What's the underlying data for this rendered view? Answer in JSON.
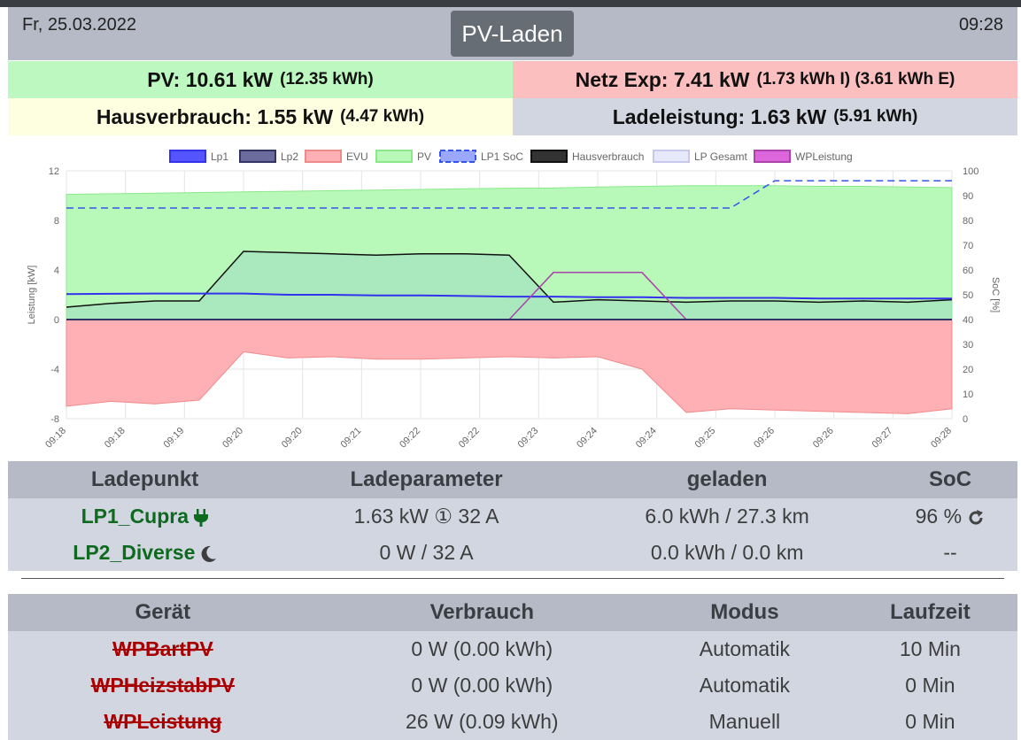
{
  "header": {
    "date": "Fr, 25.03.2022",
    "title": "PV-Laden",
    "time": "09:28"
  },
  "status": {
    "pv": {
      "label": "PV: 10.61 kW",
      "sub": "(12.35 kWh)",
      "color": "#bcf8c0"
    },
    "netz": {
      "label": "Netz Exp: 7.41 kW",
      "sub": "(1.73 kWh I) (3.61 kWh E)",
      "color": "#fbbfc0"
    },
    "haus": {
      "label": "Hausverbrauch: 1.55 kW",
      "sub": "(4.47 kWh)",
      "color": "#fefee0"
    },
    "lade": {
      "label": "Ladeleistung: 1.63 kW",
      "sub": "(5.91 kWh)",
      "color": "#d1d6e0"
    }
  },
  "chart_data": {
    "type": "area",
    "ylabel": "Leistung [kW]",
    "y2label": "SoC [%]",
    "ylim": [
      -8,
      12
    ],
    "yticks": [
      -8,
      -4,
      0,
      4,
      8,
      12
    ],
    "y2lim": [
      0,
      100
    ],
    "y2ticks": [
      0,
      10,
      20,
      30,
      40,
      50,
      60,
      70,
      80,
      90,
      100
    ],
    "xticks": [
      "09:18",
      "09:18",
      "09:19",
      "09:20",
      "09:20",
      "09:21",
      "09:22",
      "09:22",
      "09:23",
      "09:24",
      "09:24",
      "09:25",
      "09:26",
      "09:26",
      "09:27",
      "09:28"
    ],
    "legend": [
      {
        "name": "Lp1",
        "color": "#3333ee",
        "fill": "#5555ff"
      },
      {
        "name": "Lp2",
        "color": "#333366",
        "fill": "#6b6b9c"
      },
      {
        "name": "EVU",
        "color": "#f08a8a",
        "fill": "#ffb0b4"
      },
      {
        "name": "PV",
        "color": "#8be88b",
        "fill": "#b8f8b8"
      },
      {
        "name": "LP1 SoC",
        "color": "#3355ee",
        "fill": "#9aa8ff",
        "dashed": true
      },
      {
        "name": "Hausverbrauch",
        "color": "#111111",
        "fill": "#333333"
      },
      {
        "name": "LP Gesamt",
        "color": "#c8c8ee",
        "fill": "#e8e8fb"
      },
      {
        "name": "WPLeistung",
        "color": "#aa44aa",
        "fill": "#dd66dd"
      }
    ],
    "x": [
      0,
      0.5,
      1,
      1.5,
      2,
      2.5,
      3,
      3.5,
      4,
      4.5,
      5,
      5.5,
      6,
      6.5,
      7,
      7.5,
      8,
      8.5,
      9,
      9.5,
      10
    ],
    "series": [
      {
        "name": "PV",
        "values": [
          10.1,
          10.15,
          10.2,
          10.25,
          10.3,
          10.35,
          10.4,
          10.45,
          10.5,
          10.55,
          10.6,
          10.62,
          10.7,
          10.75,
          10.8,
          10.8,
          10.8,
          10.75,
          10.75,
          10.7,
          10.65
        ]
      },
      {
        "name": "EVU",
        "values": [
          -7.0,
          -6.6,
          -6.8,
          -6.5,
          -2.6,
          -3.1,
          -3.0,
          -3.2,
          -3.2,
          -3.1,
          -3.0,
          -3.1,
          -3.0,
          -4.0,
          -7.5,
          -7.2,
          -7.3,
          -7.4,
          -7.5,
          -7.6,
          -7.2
        ]
      },
      {
        "name": "Hausverbrauch",
        "values": [
          1.0,
          1.3,
          1.5,
          1.5,
          5.5,
          5.4,
          5.3,
          5.2,
          5.3,
          5.3,
          5.2,
          1.4,
          1.6,
          1.5,
          1.4,
          1.5,
          1.5,
          1.4,
          1.5,
          1.4,
          1.6
        ]
      },
      {
        "name": "Lp1",
        "values": [
          2.05,
          2.08,
          2.1,
          2.1,
          2.1,
          2.0,
          2.0,
          1.95,
          1.95,
          1.9,
          1.85,
          1.85,
          1.8,
          1.8,
          1.75,
          1.75,
          1.75,
          1.7,
          1.7,
          1.7,
          1.7
        ]
      },
      {
        "name": "WPLeistung",
        "values": [
          0,
          0,
          0,
          0,
          0,
          0,
          0,
          0,
          0,
          0,
          0,
          3.8,
          3.8,
          3.8,
          0,
          0,
          0,
          0,
          0,
          0,
          0
        ]
      },
      {
        "name": "LP1 SoC",
        "values": [
          85,
          85,
          85,
          85,
          85,
          85,
          85,
          85,
          85,
          85,
          85,
          85,
          85,
          85,
          85,
          85,
          96,
          96,
          96,
          96,
          96
        ]
      }
    ]
  },
  "lp_table": {
    "headers": [
      "Ladepunkt",
      "Ladeparameter",
      "geladen",
      "SoC"
    ],
    "rows": [
      {
        "name": "LP1_Cupra",
        "icon": "plug-icon",
        "param": "1.63 kW ① 32 A",
        "geladen": "6.0 kWh / 27.3 km",
        "soc": "96 %",
        "soc_icon": "refresh-icon"
      },
      {
        "name": "LP2_Diverse",
        "icon": "moon-icon",
        "param": "0 W / 32 A",
        "geladen": "0.0 kWh / 0.0 km",
        "soc": "--"
      }
    ]
  },
  "dev_table": {
    "headers": [
      "Gerät",
      "Verbrauch",
      "Modus",
      "Laufzeit"
    ],
    "rows": [
      {
        "name": "WPBartPV",
        "verbrauch": "0 W (0.00 kWh)",
        "modus": "Automatik",
        "laufzeit": "10 Min"
      },
      {
        "name": "WPHeizstabPV",
        "verbrauch": "0 W (0.00 kWh)",
        "modus": "Automatik",
        "laufzeit": "0 Min"
      },
      {
        "name": "WPLeistung",
        "verbrauch": "26 W (0.09 kWh)",
        "modus": "Manuell",
        "laufzeit": "0 Min"
      }
    ]
  }
}
